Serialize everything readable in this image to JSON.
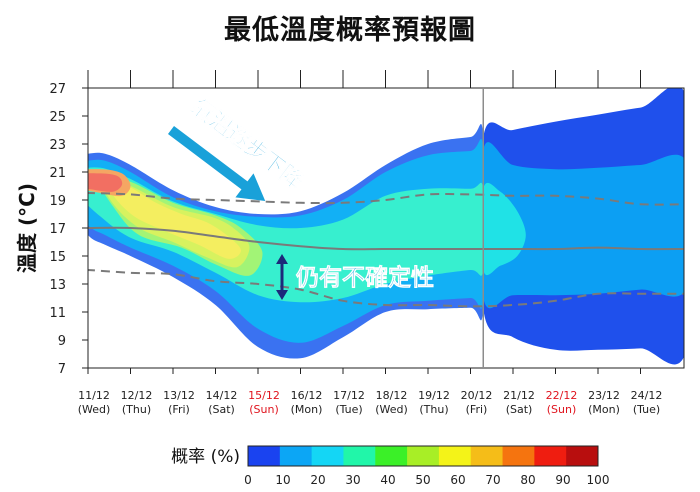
{
  "chart_data": {
    "type": "area",
    "title": "最低溫度概率預報圖",
    "ylabel": "溫度 (°C)",
    "xlabel": "",
    "ylim": [
      7,
      27
    ],
    "yticks": [
      7,
      9,
      11,
      13,
      15,
      17,
      19,
      21,
      23,
      25,
      27
    ],
    "categories": [
      {
        "date": "11/12",
        "day": "(Wed)",
        "highlight": false
      },
      {
        "date": "12/12",
        "day": "(Thu)",
        "highlight": false
      },
      {
        "date": "13/12",
        "day": "(Fri)",
        "highlight": false
      },
      {
        "date": "14/12",
        "day": "(Sat)",
        "highlight": false
      },
      {
        "date": "15/12",
        "day": "(Sun)",
        "highlight": true
      },
      {
        "date": "16/12",
        "day": "(Mon)",
        "highlight": false
      },
      {
        "date": "17/12",
        "day": "(Tue)",
        "highlight": false
      },
      {
        "date": "18/12",
        "day": "(Wed)",
        "highlight": false
      },
      {
        "date": "19/12",
        "day": "(Thu)",
        "highlight": false
      },
      {
        "date": "20/12",
        "day": "(Fri)",
        "highlight": false
      },
      {
        "date": "21/12",
        "day": "(Sat)",
        "highlight": false
      },
      {
        "date": "22/12",
        "day": "(Sun)",
        "highlight": true
      },
      {
        "date": "23/12",
        "day": "(Mon)",
        "highlight": false
      },
      {
        "date": "24/12",
        "day": "(Tue)",
        "highlight": false
      }
    ],
    "split_index": 9.3,
    "x_ext": [
      -0.4,
      14.1
    ],
    "series": [
      {
        "name": "median",
        "style": "solid",
        "values": [
          17,
          17,
          16.8,
          16.4,
          16.0,
          15.7,
          15.5,
          15.5,
          15.5,
          15.5,
          15.5,
          15.5,
          15.6,
          15.5
        ]
      },
      {
        "name": "upper",
        "style": "dashed",
        "values": [
          19.5,
          19.4,
          19.1,
          19.0,
          18.9,
          18.8,
          18.8,
          19.0,
          19.4,
          19.4,
          19.3,
          19.3,
          19.1,
          18.7
        ]
      },
      {
        "name": "lower",
        "style": "dashed",
        "values": [
          14.0,
          13.8,
          13.7,
          13.2,
          13.0,
          12.6,
          11.8,
          11.5,
          11.5,
          11.4,
          11.5,
          11.8,
          12.3,
          12.3
        ]
      }
    ],
    "probability_bands": [
      {
        "prob": 5,
        "x": [
          -0.4,
          0,
          0.4,
          1,
          2,
          3,
          4,
          5,
          6,
          7,
          8,
          9,
          9.3
        ],
        "top": [
          22,
          22.3,
          22.3,
          21.5,
          19.7,
          18.5,
          18.0,
          18.2,
          19.5,
          21.5,
          23,
          23.5,
          23.5
        ],
        "bot": [
          18.5,
          16.5,
          15.8,
          15.0,
          13.5,
          11.5,
          8.5,
          7.7,
          9.2,
          11,
          11.2,
          11.3,
          11.3
        ]
      },
      {
        "prob": 15,
        "x": [
          -0.4,
          0,
          0.4,
          1,
          2,
          3,
          4,
          5,
          6,
          7,
          8,
          9,
          9.3
        ],
        "top": [
          21.5,
          21.8,
          21.8,
          21.0,
          19.2,
          18.2,
          17.8,
          17.9,
          19.0,
          21,
          22.2,
          22.5,
          22.6
        ],
        "bot": [
          19,
          17.2,
          16.5,
          15.6,
          14.3,
          12.5,
          9.8,
          8.8,
          10.0,
          11.5,
          11.8,
          12.0,
          12.0
        ]
      },
      {
        "prob": 25,
        "x": [
          -0.2,
          0.3,
          1,
          2,
          3,
          4,
          5,
          6,
          7,
          8,
          9,
          9.3
        ],
        "top": [
          21.0,
          21.3,
          20.5,
          18.9,
          18.0,
          17.2,
          17.0,
          17.6,
          19.3,
          19.8,
          19.8,
          19.8
        ],
        "bot": [
          19.4,
          17.8,
          16.3,
          15.3,
          13.8,
          12.2,
          11.7,
          12.0,
          13.0,
          13.6,
          14.0,
          14.0
        ]
      },
      {
        "prob": 35,
        "x": [
          0.2,
          1,
          2,
          3,
          3.6,
          4.1,
          3.8,
          3.0,
          2.2,
          1.2,
          0.6
        ],
        "top": [
          20.8,
          20.3,
          18.8,
          17.9,
          17.0,
          15.3,
          13.6,
          14.4,
          15.6,
          16.5,
          18.5
        ],
        "bot": null
      },
      {
        "prob": 45,
        "x": [
          0.3,
          1,
          2,
          3,
          3.5,
          3.8,
          3.5,
          2.8,
          2.0,
          1.2,
          0.6
        ],
        "top": [
          20.6,
          20.0,
          18.5,
          17.7,
          16.8,
          15.6,
          14.2,
          14.9,
          16.0,
          17.0,
          18.7
        ],
        "bot": null
      },
      {
        "prob": 55,
        "x": [
          0.5,
          1.0,
          1.6,
          2.2,
          2.8,
          3.3,
          3.6,
          3.3,
          2.6,
          1.8,
          1.1,
          0.6
        ],
        "top": [
          20.5,
          19.9,
          18.8,
          18.0,
          17.4,
          16.4,
          15.4,
          14.8,
          15.8,
          16.8,
          17.8,
          19.3
        ],
        "bot": null
      },
      {
        "prob": 65,
        "x": [
          -0.3,
          0.3,
          0.8,
          1.0,
          0.8,
          0.3,
          -0.2
        ],
        "top": [
          21.0,
          21.2,
          20.9,
          20.0,
          19.3,
          19.5,
          19.9
        ],
        "bot": null
      },
      {
        "prob": 75,
        "x": [
          -0.2,
          0.3,
          0.7,
          0.8,
          0.6,
          0.2,
          -0.2
        ],
        "top": [
          20.8,
          20.9,
          20.7,
          20.1,
          19.6,
          19.7,
          20.0
        ],
        "bot": null
      }
    ],
    "extended_bands": [
      {
        "prob": 5,
        "x": [
          9.3,
          10,
          11,
          12,
          13,
          14.1
        ],
        "top": [
          23.5,
          24.0,
          24.6,
          25.1,
          25.6,
          26.0
        ],
        "bot": [
          11.2,
          9.2,
          8.3,
          8.3,
          8.4,
          8.6
        ]
      },
      {
        "prob": 15,
        "x": [
          9.3,
          10,
          11,
          12,
          13,
          14.1
        ],
        "top": [
          22.6,
          21.5,
          21.2,
          21.3,
          21.5,
          21.6
        ],
        "bot": [
          12.0,
          12.2,
          12.2,
          12.3,
          12.6,
          12.8
        ]
      },
      {
        "prob": 25,
        "x": [
          9.3,
          9.7,
          10.1,
          10.3,
          10.1,
          9.7,
          9.3
        ],
        "top": [
          19.8,
          19.6,
          18.2,
          16.5,
          15.0,
          14.3,
          14.0
        ],
        "bot": null
      }
    ],
    "annotations": [
      {
        "text": "氣溫逐步下降",
        "color": "#19a1d9"
      },
      {
        "text": "仍有不確定性",
        "color": "#19a1d9"
      }
    ],
    "legend": {
      "label": "概率 (%)",
      "ticks": [
        "0",
        "10",
        "20",
        "30",
        "40",
        "50",
        "60",
        "70",
        "80",
        "90",
        "100"
      ],
      "colors": [
        "#1a43f0",
        "#0ca6f5",
        "#14d6f5",
        "#21f6a9",
        "#3bf028",
        "#a8ee26",
        "#f4f318",
        "#f5bd18",
        "#f5740f",
        "#ef1d10",
        "#b80e0e"
      ]
    },
    "band_colors": {
      "5": "#3a72f1",
      "15": "#12b0f5",
      "25": "#37efcf",
      "35": "#a2f476",
      "45": "#d7f25f",
      "55": "#f4ee60",
      "65": "#f5a663",
      "75": "#f26f62"
    },
    "extended_colors": {
      "5": "#1f50ec",
      "15": "#0c9ff3",
      "25": "#20e2e6"
    }
  }
}
